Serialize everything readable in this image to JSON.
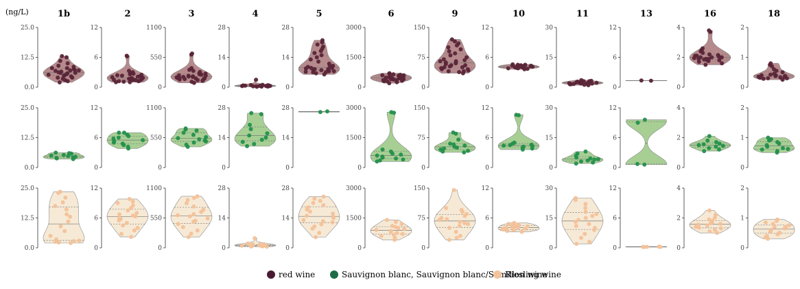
{
  "unit_label": "(ng/L)",
  "legend": [
    {
      "label": "red wine",
      "color": "#4a1a33"
    },
    {
      "label": "Sauvignon blanc, Sauvignon blanc/Sémillon wine",
      "color": "#1f6b46"
    },
    {
      "label": "Riesling wine",
      "color": "#f2c49c"
    }
  ],
  "colors": {
    "red": {
      "fill": "#b68a8c",
      "point": "#5a2538"
    },
    "green": {
      "fill": "#a7cf94",
      "point": "#23904c"
    },
    "ries": {
      "fill": "#f6ead6",
      "point": "#f3c29a"
    }
  },
  "chart_data": {
    "type": "violin",
    "rows": [
      "red",
      "green",
      "ries"
    ],
    "compounds": [
      {
        "name": "1b",
        "ticks": [
          "25.0",
          "12.5",
          "0.0"
        ],
        "ymax": 25.0,
        "red": [
          2,
          3,
          3.5,
          4,
          4.5,
          4.8,
          5,
          5.2,
          5.5,
          5.8,
          6,
          6,
          6.2,
          6.5,
          6.8,
          7,
          7,
          7.2,
          7.5,
          8,
          8,
          8.5,
          9,
          10,
          11,
          12.5,
          13,
          2.5,
          4,
          5
        ],
        "green": [
          3.5,
          3.8,
          4,
          4.2,
          4.5,
          4.8,
          5,
          5.2,
          5.8,
          6,
          6.2
        ],
        "ries": [
          2,
          2.2,
          2.5,
          3,
          3.5,
          5,
          7,
          9,
          11,
          13,
          14,
          16,
          17.5,
          19,
          21,
          23,
          23.5,
          2.8
        ]
      },
      {
        "name": "2",
        "ticks": [
          "12",
          "6",
          "0"
        ],
        "ymax": 12,
        "red": [
          1,
          1.1,
          1.2,
          1.3,
          1.4,
          1.5,
          1.5,
          1.6,
          1.7,
          1.8,
          1.9,
          2,
          2,
          2.1,
          2.2,
          2.3,
          2.5,
          2.6,
          2.8,
          3,
          3.3,
          1.2,
          1.6,
          1.8,
          2.4,
          6.2,
          6.3,
          1.0,
          1.4,
          2.7
        ],
        "green": [
          3.8,
          4.2,
          4.5,
          5,
          5.3,
          5.5,
          6,
          6.3,
          6.6,
          7,
          7,
          5.8,
          4.8
        ],
        "ries": [
          2.2,
          2.8,
          3.5,
          4,
          4.5,
          5,
          5.5,
          6,
          6.3,
          6.7,
          7,
          7.5,
          8,
          8.5,
          9,
          9.3,
          9.8,
          5.8,
          6.5
        ]
      },
      {
        "name": "3",
        "ticks": [
          "1100",
          "550",
          "0"
        ],
        "ymax": 1100,
        "red": [
          80,
          100,
          120,
          140,
          150,
          160,
          170,
          180,
          190,
          200,
          210,
          220,
          230,
          240,
          250,
          260,
          280,
          300,
          320,
          350,
          150,
          170,
          190,
          210,
          600,
          620,
          130,
          160,
          180,
          200
        ],
        "green": [
          380,
          420,
          460,
          500,
          520,
          560,
          600,
          640,
          680,
          700,
          720,
          540,
          480
        ],
        "ries": [
          200,
          260,
          320,
          380,
          440,
          500,
          540,
          580,
          620,
          660,
          700,
          760,
          820,
          880,
          920,
          950,
          600,
          480
        ]
      },
      {
        "name": "4",
        "ticks": [
          "28",
          "14",
          "0"
        ],
        "ymax": 28,
        "red": [
          0.2,
          0.3,
          0.4,
          0.5,
          0.6,
          0.7,
          0.8,
          0.9,
          1,
          1.1,
          0.4,
          0.6,
          0.8,
          0.3,
          0.5,
          0.7,
          0.9,
          3.5,
          0.5,
          0.6
        ],
        "green": [
          10,
          11,
          12,
          13,
          14,
          16,
          18,
          20,
          25,
          25.5,
          15
        ],
        "ries": [
          0.5,
          0.7,
          0.9,
          1.1,
          1.3,
          1.5,
          1.7,
          2,
          0.8,
          1.2,
          1.6,
          1.0,
          4.5,
          0.6,
          1.4
        ]
      },
      {
        "name": "5",
        "ticks": [
          "28",
          "14",
          "0"
        ],
        "ymax": 28,
        "red": [
          6,
          6.5,
          7,
          7,
          7.5,
          7.5,
          8,
          8,
          8.5,
          8.5,
          9,
          9.5,
          10,
          10,
          11,
          12,
          13,
          14,
          15,
          16,
          17,
          18,
          19,
          20,
          21,
          22,
          8,
          9,
          7.2,
          8.8
        ],
        "green": [
          26,
          26.3
        ],
        "ries": [
          5,
          7,
          9,
          10,
          11,
          12,
          13,
          14,
          15,
          16,
          17,
          18,
          19,
          20,
          21,
          22,
          23,
          24,
          14.5,
          12.5
        ]
      },
      {
        "name": "6",
        "ticks": [
          "3000",
          "1500",
          "0"
        ],
        "ymax": 3000,
        "red": [
          200,
          250,
          300,
          320,
          350,
          380,
          400,
          420,
          450,
          480,
          500,
          520,
          550,
          580,
          600,
          620,
          650,
          680,
          700,
          300,
          400,
          500,
          600,
          350,
          450,
          550
        ],
        "green": [
          300,
          350,
          400,
          450,
          500,
          550,
          600,
          650,
          700,
          800,
          900,
          2750,
          2780
        ],
        "ries": [
          400,
          500,
          600,
          700,
          800,
          850,
          900,
          950,
          1000,
          1100,
          1200,
          1300,
          1400,
          750,
          1050,
          650
        ]
      },
      {
        "name": "9",
        "ticks": [
          "150",
          "75",
          "0"
        ],
        "ymax": 150,
        "red": [
          35,
          38,
          40,
          42,
          45,
          48,
          50,
          52,
          55,
          58,
          60,
          62,
          65,
          68,
          70,
          75,
          80,
          85,
          90,
          95,
          100,
          105,
          110,
          115,
          120,
          45,
          55,
          65,
          40,
          50
        ],
        "green": [
          38,
          40,
          42,
          45,
          48,
          50,
          52,
          55,
          58,
          60,
          70,
          85,
          88
        ],
        "ries": [
          20,
          25,
          30,
          40,
          50,
          55,
          60,
          65,
          70,
          75,
          80,
          85,
          90,
          95,
          100,
          145,
          62,
          72
        ]
      },
      {
        "name": "10",
        "ticks": [
          "12",
          "6",
          "0"
        ],
        "ymax": 12,
        "red": [
          3.6,
          3.7,
          3.8,
          3.9,
          4,
          4,
          4.1,
          4.2,
          4.3,
          4.4,
          4.5,
          4.6,
          3.8,
          4.2,
          4.4,
          4.1,
          3.9,
          4.3,
          4.0,
          4.5
        ],
        "green": [
          3.6,
          3.8,
          4,
          4.2,
          4.4,
          4.5,
          4.6,
          4.8,
          5,
          10.5,
          10.6,
          4.3
        ],
        "ries": [
          3.2,
          3.4,
          3.5,
          3.6,
          3.8,
          4,
          4.2,
          4.4,
          4.6,
          4.8,
          5,
          3.7,
          4.1,
          4.3,
          3.9,
          3.6,
          4.5,
          4.7
        ]
      },
      {
        "name": "11",
        "ticks": [
          "30",
          "15",
          "0"
        ],
        "ymax": 30,
        "red": [
          1,
          1.2,
          1.5,
          1.8,
          2,
          2.2,
          2.5,
          2.8,
          3,
          3.2,
          3.5,
          1.5,
          2,
          2.5,
          3,
          1.8,
          2.2,
          2.6,
          2.4,
          1.6
        ],
        "green": [
          2,
          2.5,
          3,
          3.5,
          4,
          4.5,
          5,
          6,
          7,
          8,
          4.2
        ],
        "ries": [
          5,
          7,
          9,
          10,
          11,
          12,
          13,
          14,
          15,
          16,
          17,
          18,
          20,
          22,
          24,
          25,
          2,
          3
        ]
      },
      {
        "name": "13",
        "ticks": [
          "12",
          "6",
          "0"
        ],
        "ymax": 12,
        "red": [
          1.3,
          1.35
        ],
        "green": [
          0.6,
          0.7,
          9,
          9.6
        ],
        "ries": [
          0.15,
          0.18,
          0.2,
          0.22,
          0.25,
          0.2
        ]
      },
      {
        "name": "16",
        "ticks": [
          "4",
          "2",
          "0"
        ],
        "ymax": 4,
        "red": [
          1.5,
          1.6,
          1.7,
          1.75,
          1.8,
          1.85,
          1.9,
          1.9,
          1.95,
          2,
          2,
          2.05,
          2.1,
          2.15,
          2.2,
          2.3,
          2.4,
          2.5,
          2.6,
          3.7,
          3.8,
          1.8,
          2,
          1.9,
          2.1
        ],
        "green": [
          1.1,
          1.2,
          1.3,
          1.4,
          1.5,
          1.55,
          1.6,
          1.7,
          1.8,
          2.1,
          1.45
        ],
        "ries": [
          1,
          1.1,
          1.2,
          1.3,
          1.4,
          1.5,
          1.55,
          1.6,
          1.7,
          1.8,
          1.9,
          2,
          2.2,
          2.5,
          1.35,
          1.65
        ]
      },
      {
        "name": "18",
        "ticks": [
          "2",
          "1",
          "0"
        ],
        "ymax": 2,
        "red": [
          0.25,
          0.28,
          0.3,
          0.32,
          0.35,
          0.38,
          0.4,
          0.42,
          0.45,
          0.5,
          0.55,
          0.6,
          0.7,
          0.75,
          0.8,
          0.3,
          0.35,
          0.4,
          0.33,
          0.37
        ],
        "green": [
          0.5,
          0.55,
          0.6,
          0.65,
          0.7,
          0.75,
          0.8,
          0.85,
          0.9,
          1,
          0.95,
          0.62
        ],
        "ries": [
          0.3,
          0.35,
          0.4,
          0.45,
          0.5,
          0.55,
          0.6,
          0.65,
          0.7,
          0.75,
          0.8,
          0.85,
          0.9,
          0.95,
          0.5,
          0.7
        ]
      }
    ]
  }
}
